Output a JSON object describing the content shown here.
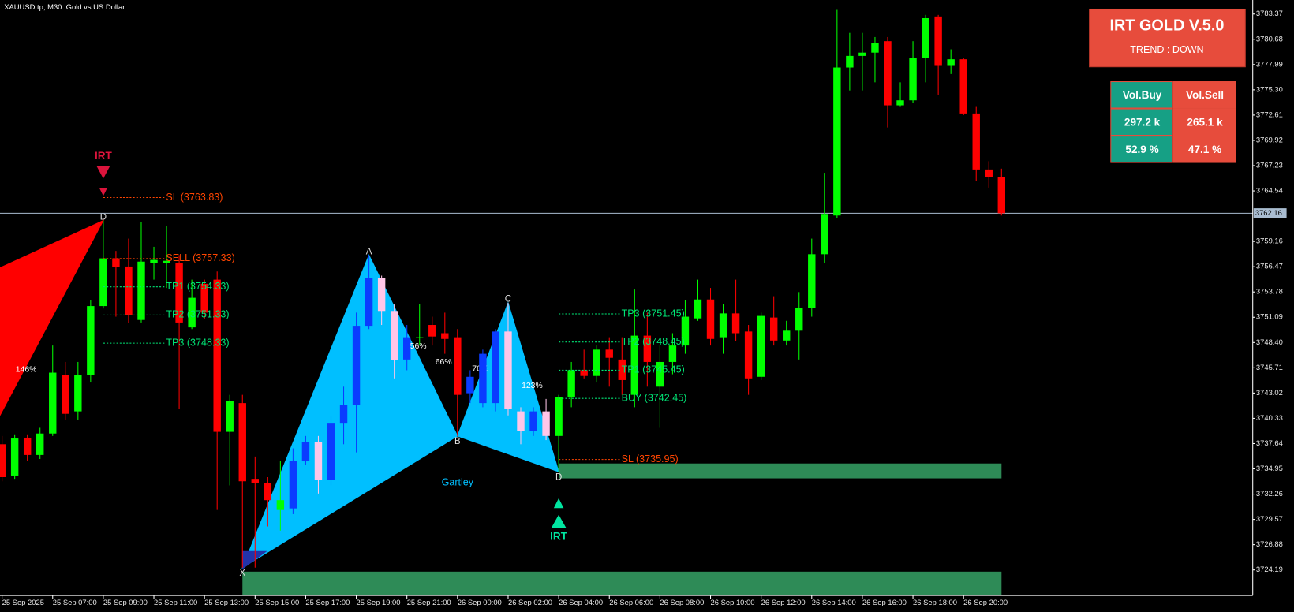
{
  "chart_data": {
    "type": "candlestick",
    "title": "XAUUSD.tp, M30:  Gold vs US Dollar",
    "categories": [
      "25 Sep 2025",
      null,
      null,
      null,
      "25 Sep 07:00",
      null,
      null,
      null,
      "25 Sep 09:00",
      null,
      null,
      null,
      "25 Sep 11:00",
      null,
      null,
      null,
      "25 Sep 13:00",
      null,
      null,
      null,
      "25 Sep 15:00",
      null,
      null,
      null,
      "25 Sep 17:00",
      null,
      null,
      null,
      "25 Sep 19:00",
      null,
      null,
      null,
      "25 Sep 21:00",
      null,
      null,
      null,
      "26 Sep 00:00",
      null,
      null,
      null,
      "26 Sep 02:00",
      null,
      null,
      null,
      "26 Sep 04:00",
      null,
      null,
      null,
      "26 Sep 06:00",
      null,
      null,
      null,
      "26 Sep 08:00",
      null,
      null,
      null,
      "26 Sep 10:00",
      null,
      null,
      null,
      "26 Sep 12:00",
      null,
      null,
      null,
      "26 Sep 14:00",
      null,
      null,
      null,
      "26 Sep 16:00",
      null,
      null,
      null,
      "26 Sep 18:00",
      null,
      null,
      null,
      "26 Sep 20:00",
      null,
      null,
      null
    ],
    "open": [
      3737.57,
      3734.24,
      3738.27,
      3736.43,
      3738.71,
      3744.93,
      3741.07,
      3744.93,
      3752.28,
      3757.36,
      3756.49,
      3750.8,
      3756.84,
      3756.84,
      3756.84,
      3750.01,
      3754.65,
      3755.09,
      3738.89,
      3741.95,
      3733.89,
      3733.46,
      3730.57,
      3730.74,
      3735.82,
      3737.83,
      3733.81,
      3739.85,
      3741.78,
      3750.18,
      3755.26,
      3751.76,
      3746.59,
      3748.87,
      3750.27,
      3749.39,
      3748.96,
      3743.0,
      3741.95,
      3741.95,
      3749.57,
      3741.07,
      3738.97,
      3741.07,
      3738.45,
      3742.56,
      3745.45,
      3744.84,
      3747.64,
      3746.59,
      3742.83,
      3749.13,
      3743.7,
      3746.33,
      3748.08,
      3750.97,
      3752.98,
      3748.96,
      3751.5,
      3749.57,
      3744.75,
      3751.06,
      3748.61,
      3749.66,
      3752.11,
      3757.8,
      3761.92,
      3777.68,
      3778.91,
      3779.26,
      3780.48,
      3773.65,
      3774.18,
      3778.73,
      3783.11,
      3777.85,
      3778.55,
      3772.78,
      3766.82,
      3766.03
    ],
    "high": [
      3738.45,
      3738.62,
      3738.62,
      3739.32,
      3748.08,
      3746.33,
      3746.33,
      3752.9,
      3761.39,
      3758.15,
      3759.46,
      3761.22,
      3758.59,
      3760.78,
      3757.71,
      3755.09,
      3755.09,
      3755.96,
      3742.83,
      3742.83,
      3736.26,
      3734.07,
      3735.82,
      3737.13,
      3738.45,
      3738.45,
      3740.64,
      3743.7,
      3751.58,
      3757.71,
      3755.52,
      3752.46,
      3750.27,
      3752.46,
      3751.15,
      3751.58,
      3749.83,
      3745.45,
      3747.64,
      3749.83,
      3752.63,
      3741.51,
      3741.51,
      3742.39,
      3742.83,
      3746.33,
      3747.64,
      3748.08,
      3748.96,
      3748.96,
      3754.04,
      3751.58,
      3748.08,
      3749.39,
      3752.9,
      3755.09,
      3754.21,
      3752.46,
      3755.09,
      3750.27,
      3751.58,
      3753.33,
      3750.71,
      3753.77,
      3759.46,
      3766.47,
      3783.81,
      3781.36,
      3781.36,
      3780.92,
      3780.92,
      3776.1,
      3780.48,
      3783.28,
      3783.28,
      3779.61,
      3778.73,
      3773.48,
      3767.7,
      3766.91
    ],
    "low": [
      3733.63,
      3733.89,
      3735.82,
      3736.0,
      3738.45,
      3740.2,
      3740.2,
      3744.14,
      3752.02,
      3751.15,
      3750.45,
      3750.53,
      3755.09,
      3754.21,
      3741.34,
      3749.83,
      3750.88,
      3730.57,
      3733.19,
      3724.44,
      3724.44,
      3728.82,
      3728.38,
      3730.13,
      3735.38,
      3732.32,
      3733.19,
      3737.57,
      3736.7,
      3749.83,
      3750.27,
      3744.58,
      3745.45,
      3748.08,
      3748.08,
      3747.2,
      3738.45,
      3741.95,
      3741.51,
      3741.07,
      3740.64,
      3737.57,
      3738.45,
      3738.01,
      3734.64,
      3741.51,
      3744.58,
      3744.14,
      3743.7,
      3742.83,
      3741.51,
      3743.7,
      3739.32,
      3745.02,
      3747.2,
      3750.71,
      3748.08,
      3747.2,
      3748.52,
      3742.83,
      3744.4,
      3748.08,
      3748.08,
      3746.59,
      3751.15,
      3756.84,
      3761.65,
      3775.23,
      3775.23,
      3776.1,
      3771.29,
      3773.48,
      3773.91,
      3776.1,
      3774.79,
      3776.98,
      3772.6,
      3765.59,
      3764.89,
      3761.92
    ],
    "close": [
      3734.07,
      3738.18,
      3736.43,
      3738.71,
      3745.19,
      3740.81,
      3744.93,
      3752.28,
      3757.36,
      3756.4,
      3751.32,
      3757.01,
      3757.19,
      3757.1,
      3750.53,
      3753.16,
      3751.58,
      3738.89,
      3742.13,
      3733.63,
      3733.46,
      3731.62,
      3731.62,
      3735.82,
      3737.83,
      3733.81,
      3739.85,
      3741.78,
      3750.18,
      3755.26,
      3751.76,
      3746.5,
      3748.96,
      3748.96,
      3749.04,
      3748.78,
      3742.83,
      3744.75,
      3747.2,
      3749.57,
      3741.34,
      3738.97,
      3741.07,
      3738.45,
      3742.56,
      3745.45,
      3744.84,
      3747.64,
      3746.77,
      3744.4,
      3749.13,
      3746.33,
      3746.33,
      3748.08,
      3751.15,
      3752.98,
      3748.78,
      3751.5,
      3749.39,
      3744.58,
      3751.23,
      3748.61,
      3749.66,
      3752.11,
      3757.8,
      3762.09,
      3777.68,
      3778.91,
      3779.26,
      3780.31,
      3773.65,
      3774.18,
      3778.73,
      3782.93,
      3777.85,
      3778.55,
      3772.78,
      3766.82,
      3766.03,
      3762.16
    ],
    "up_color": "#00ff00",
    "down_color": "#ff0000",
    "pattern_up_color": "#0a3cff",
    "pattern_down_color": "#ffc6e8",
    "pattern_candle_ranges": [
      [
        23,
        32
      ],
      [
        37,
        43
      ]
    ],
    "ylim": [
      3721.47,
      3784.86
    ],
    "yticks": [
      3783.37,
      3780.68,
      3777.99,
      {
        "value": 3775.3,
        "label": "3775.30"
      },
      3772.61,
      3769.92,
      3767.23,
      3764.54,
      3759.16,
      3756.47,
      3753.78,
      3751.09,
      {
        "value": 3748.4,
        "label": "3748.40"
      },
      3745.71,
      3743.02,
      3740.33,
      3737.64,
      3734.95,
      3732.26,
      3729.57,
      3726.88,
      3724.19
    ],
    "current_price": 3762.16,
    "price_line_color": "#a9bcd0",
    "harmonic_patterns": [
      {
        "color": "#ff0000",
        "points": [
          {
            "x": -0.2,
            "price": 3756.33
          },
          {
            "label": "D",
            "x": 8,
            "price": 3761.39
          },
          {
            "x": -0.2,
            "price": 3740.55
          }
        ],
        "ratios": [
          {
            "label": "146%",
            "x": 1.9,
            "price": 3745.5
          }
        ]
      },
      {
        "name": "Gartley",
        "color": "#00bfff",
        "points": [
          {
            "label": "X",
            "x": 19,
            "price": 3724.44
          },
          {
            "label": "A",
            "x": 29,
            "price": 3757.71
          },
          {
            "label": "B",
            "x": 36,
            "price": 3738.45
          },
          {
            "label": "C",
            "x": 40,
            "price": 3752.63
          },
          {
            "label": "D",
            "x": 44,
            "price": 3734.64
          }
        ],
        "ratios": [
          {
            "label": "56%",
            "x": 32.9,
            "price": 3748.0
          },
          {
            "label": "66%",
            "x": 34.9,
            "price": 3746.3
          },
          {
            "label": "76%",
            "x": 37.8,
            "price": 3745.6
          },
          {
            "label": "123%",
            "x": 41.9,
            "price": 3743.8
          }
        ]
      }
    ],
    "signals": [
      {
        "label": "IRT",
        "direction": "sell",
        "x": 8,
        "color": "#dc143c",
        "levels": [
          {
            "label": "SL (3763.83)",
            "price": 3763.83,
            "color": "#ff4500"
          },
          {
            "label": "SELL (3757.33)",
            "price": 3757.33,
            "color": "#ff4500"
          },
          {
            "label": "TP1 (3754.33)",
            "price": 3754.33,
            "color": "#00e676"
          },
          {
            "label": "TP2 (3751.33)",
            "price": 3751.33,
            "color": "#00e676"
          },
          {
            "label": "TP3 (3748.33)",
            "price": 3748.33,
            "color": "#00e676"
          }
        ]
      },
      {
        "label": "IRT",
        "direction": "buy",
        "x": 44,
        "color": "#00e5a0",
        "levels": [
          {
            "label": "TP3 (3751.45)",
            "price": 3751.45,
            "color": "#00e676"
          },
          {
            "label": "TP2 (3748.45)",
            "price": 3748.45,
            "color": "#00e676"
          },
          {
            "label": "TP1 (3745.45)",
            "price": 3745.45,
            "color": "#00e676"
          },
          {
            "label": "BUY (3742.45)",
            "price": 3742.45,
            "color": "#00e676"
          },
          {
            "label": "SL (3735.95)",
            "price": 3735.95,
            "color": "#ff4500"
          }
        ]
      }
    ],
    "zones": [
      {
        "color": "#2e8b57",
        "x": 44,
        "top": 3735.52,
        "bottom": 3733.94
      },
      {
        "color": "#2e8b57",
        "x": 19,
        "top": 3724.01,
        "bottom": 3721.47
      }
    ]
  },
  "panel": {
    "title": "IRT GOLD V.5.0",
    "trend": "TREND : DOWN",
    "table": {
      "header": [
        "Vol.Buy",
        "Vol.Sell"
      ],
      "rows": [
        [
          "297.2 k",
          "265.1 k"
        ],
        [
          "52.9 %",
          "47.1 %"
        ]
      ]
    }
  }
}
